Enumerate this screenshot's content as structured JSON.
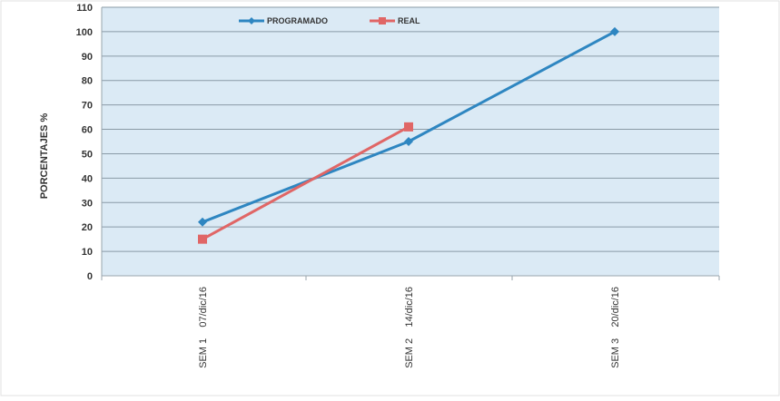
{
  "chart_data": {
    "type": "line",
    "categories": [
      "SEM 1    07/dic/16",
      "SEM 2    14/dic/16",
      "SEM 3    20/dic/16"
    ],
    "series": [
      {
        "name": "PROGRAMADO",
        "color": "#2e86c1",
        "marker": "diamond",
        "values": [
          22,
          55,
          100
        ]
      },
      {
        "name": "REAL",
        "color": "#e06666",
        "marker": "square",
        "values": [
          15,
          61,
          null
        ]
      }
    ],
    "ylabel": "PORCENTAJES %",
    "xlabel": "",
    "ylim": [
      0,
      110
    ],
    "yticks": [
      0,
      10,
      20,
      30,
      40,
      50,
      60,
      70,
      80,
      90,
      100,
      110
    ],
    "grid": true,
    "legend": "top-center",
    "plot_background": "#dbeaf5"
  }
}
